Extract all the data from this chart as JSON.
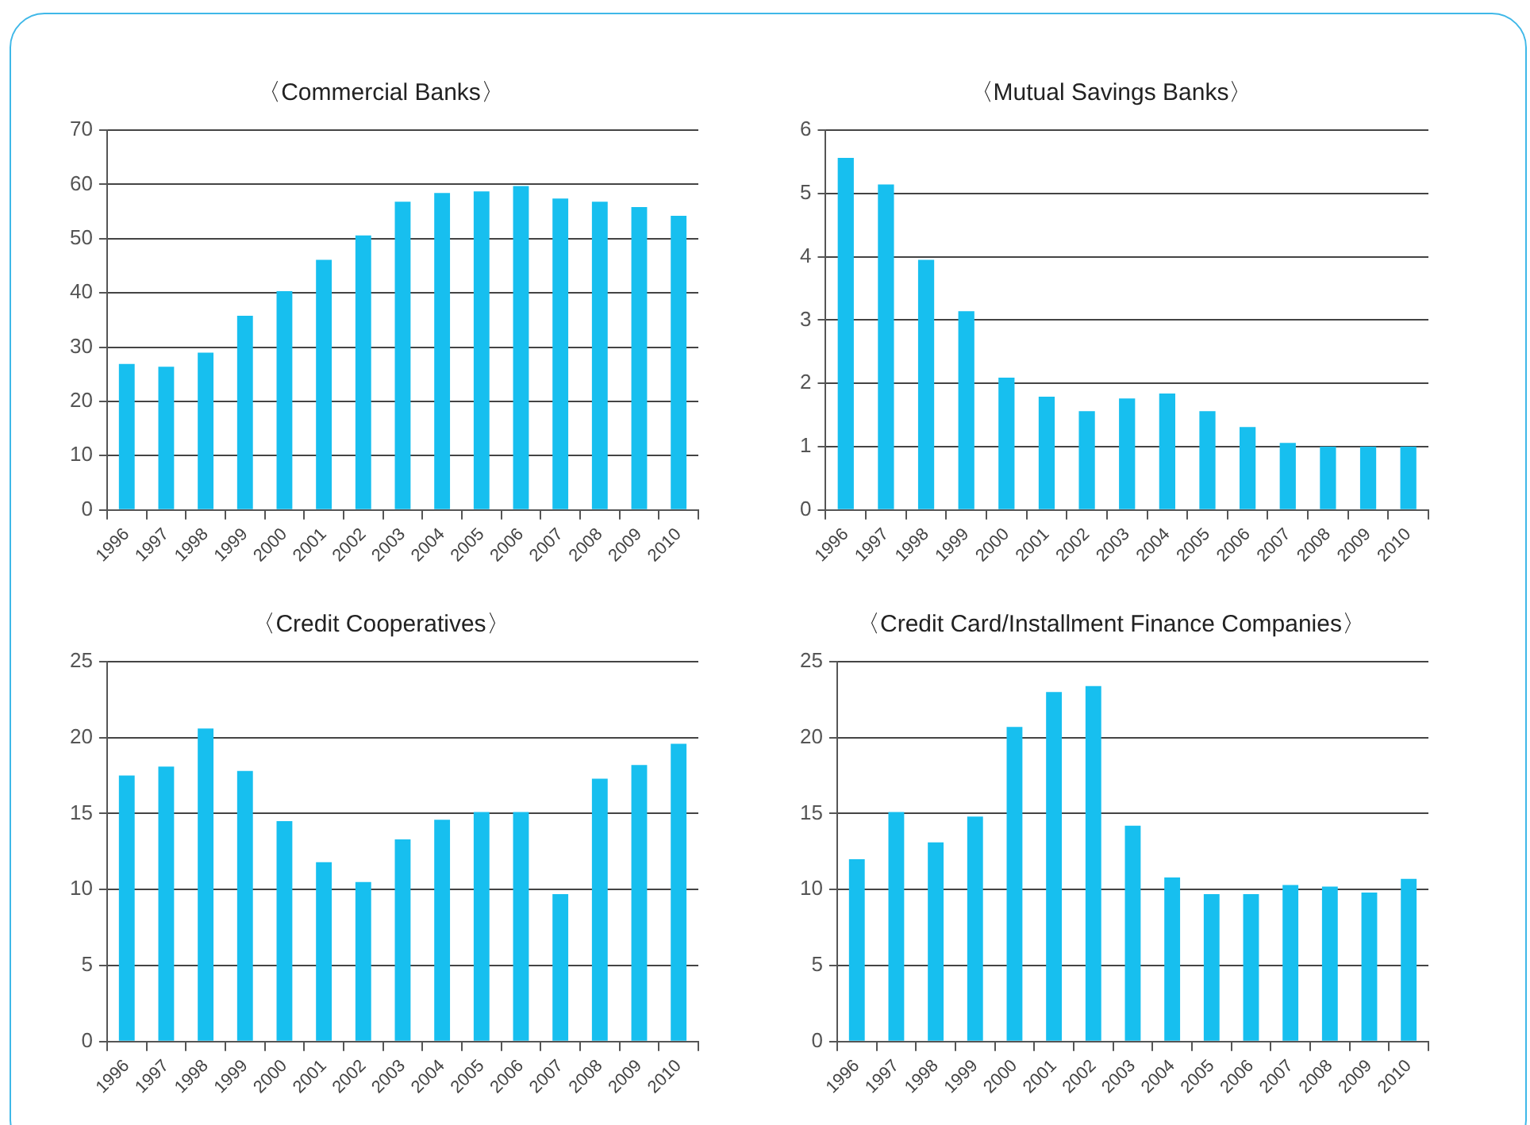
{
  "chart_data": [
    {
      "type": "bar",
      "title": "〈Commercial Banks〉",
      "categories": [
        "1996",
        "1997",
        "1998",
        "1999",
        "2000",
        "2001",
        "2002",
        "2003",
        "2004",
        "2005",
        "2006",
        "2007",
        "2008",
        "2009",
        "2010"
      ],
      "values": [
        26.9,
        26.4,
        29.0,
        35.8,
        40.3,
        46.1,
        50.6,
        56.8,
        58.4,
        58.7,
        59.7,
        57.4,
        56.8,
        55.8,
        54.2
      ],
      "color": "#17bfef",
      "ylim": [
        0,
        70
      ],
      "yticks": [
        0,
        10,
        20,
        30,
        40,
        50,
        60,
        70
      ],
      "grid": "y",
      "legend": false
    },
    {
      "type": "bar",
      "title": "〈Mutual Savings Banks〉",
      "categories": [
        "1996",
        "1997",
        "1998",
        "1999",
        "2000",
        "2001",
        "2002",
        "2003",
        "2004",
        "2005",
        "2006",
        "2007",
        "2008",
        "2009",
        "2010"
      ],
      "values": [
        5.56,
        5.14,
        3.95,
        3.14,
        2.09,
        1.79,
        1.56,
        1.76,
        1.84,
        1.56,
        1.31,
        1.06,
        1.0,
        1.0,
        1.0
      ],
      "color": "#17bfef",
      "ylim": [
        0,
        6
      ],
      "yticks": [
        0,
        1,
        2,
        3,
        4,
        5,
        6
      ],
      "grid": "y",
      "legend": false
    },
    {
      "type": "bar",
      "title": "〈Credit Cooperatives〉",
      "categories": [
        "1996",
        "1997",
        "1998",
        "1999",
        "2000",
        "2001",
        "2002",
        "2003",
        "2004",
        "2005",
        "2006",
        "2007",
        "2008",
        "2009",
        "2010"
      ],
      "values": [
        17.5,
        18.1,
        20.6,
        17.8,
        14.5,
        11.8,
        10.5,
        13.3,
        14.6,
        15.1,
        15.1,
        9.7,
        17.3,
        18.2,
        19.6
      ],
      "color": "#17bfef",
      "ylim": [
        0,
        25
      ],
      "yticks": [
        0,
        5,
        10,
        15,
        20,
        25
      ],
      "grid": "y",
      "legend": false
    },
    {
      "type": "bar",
      "title": "〈Credit Card/Installment Finance Companies〉",
      "categories": [
        "1996",
        "1997",
        "1998",
        "1999",
        "2000",
        "2001",
        "2002",
        "2003",
        "2004",
        "2005",
        "2006",
        "2007",
        "2008",
        "2009",
        "2010"
      ],
      "values": [
        12.0,
        15.1,
        13.1,
        14.8,
        20.7,
        23.0,
        23.4,
        14.2,
        10.8,
        9.7,
        9.7,
        10.3,
        10.2,
        9.8,
        10.7
      ],
      "color": "#17bfef",
      "ylim": [
        0,
        25
      ],
      "yticks": [
        0,
        5,
        10,
        15,
        20,
        25
      ],
      "grid": "y",
      "legend": false
    }
  ]
}
